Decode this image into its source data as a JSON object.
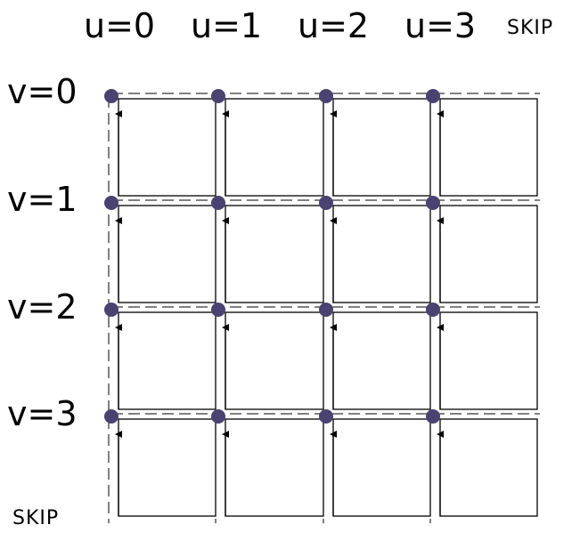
{
  "columns": [
    "u=0",
    "u=1",
    "u=2",
    "u=3"
  ],
  "rows": [
    "v=0",
    "v=1",
    "v=2",
    "v=3"
  ],
  "skip_top": "SKIP",
  "skip_bottom": "SKIP",
  "colors": {
    "vertex": "#4a4270",
    "line": "#000000"
  }
}
